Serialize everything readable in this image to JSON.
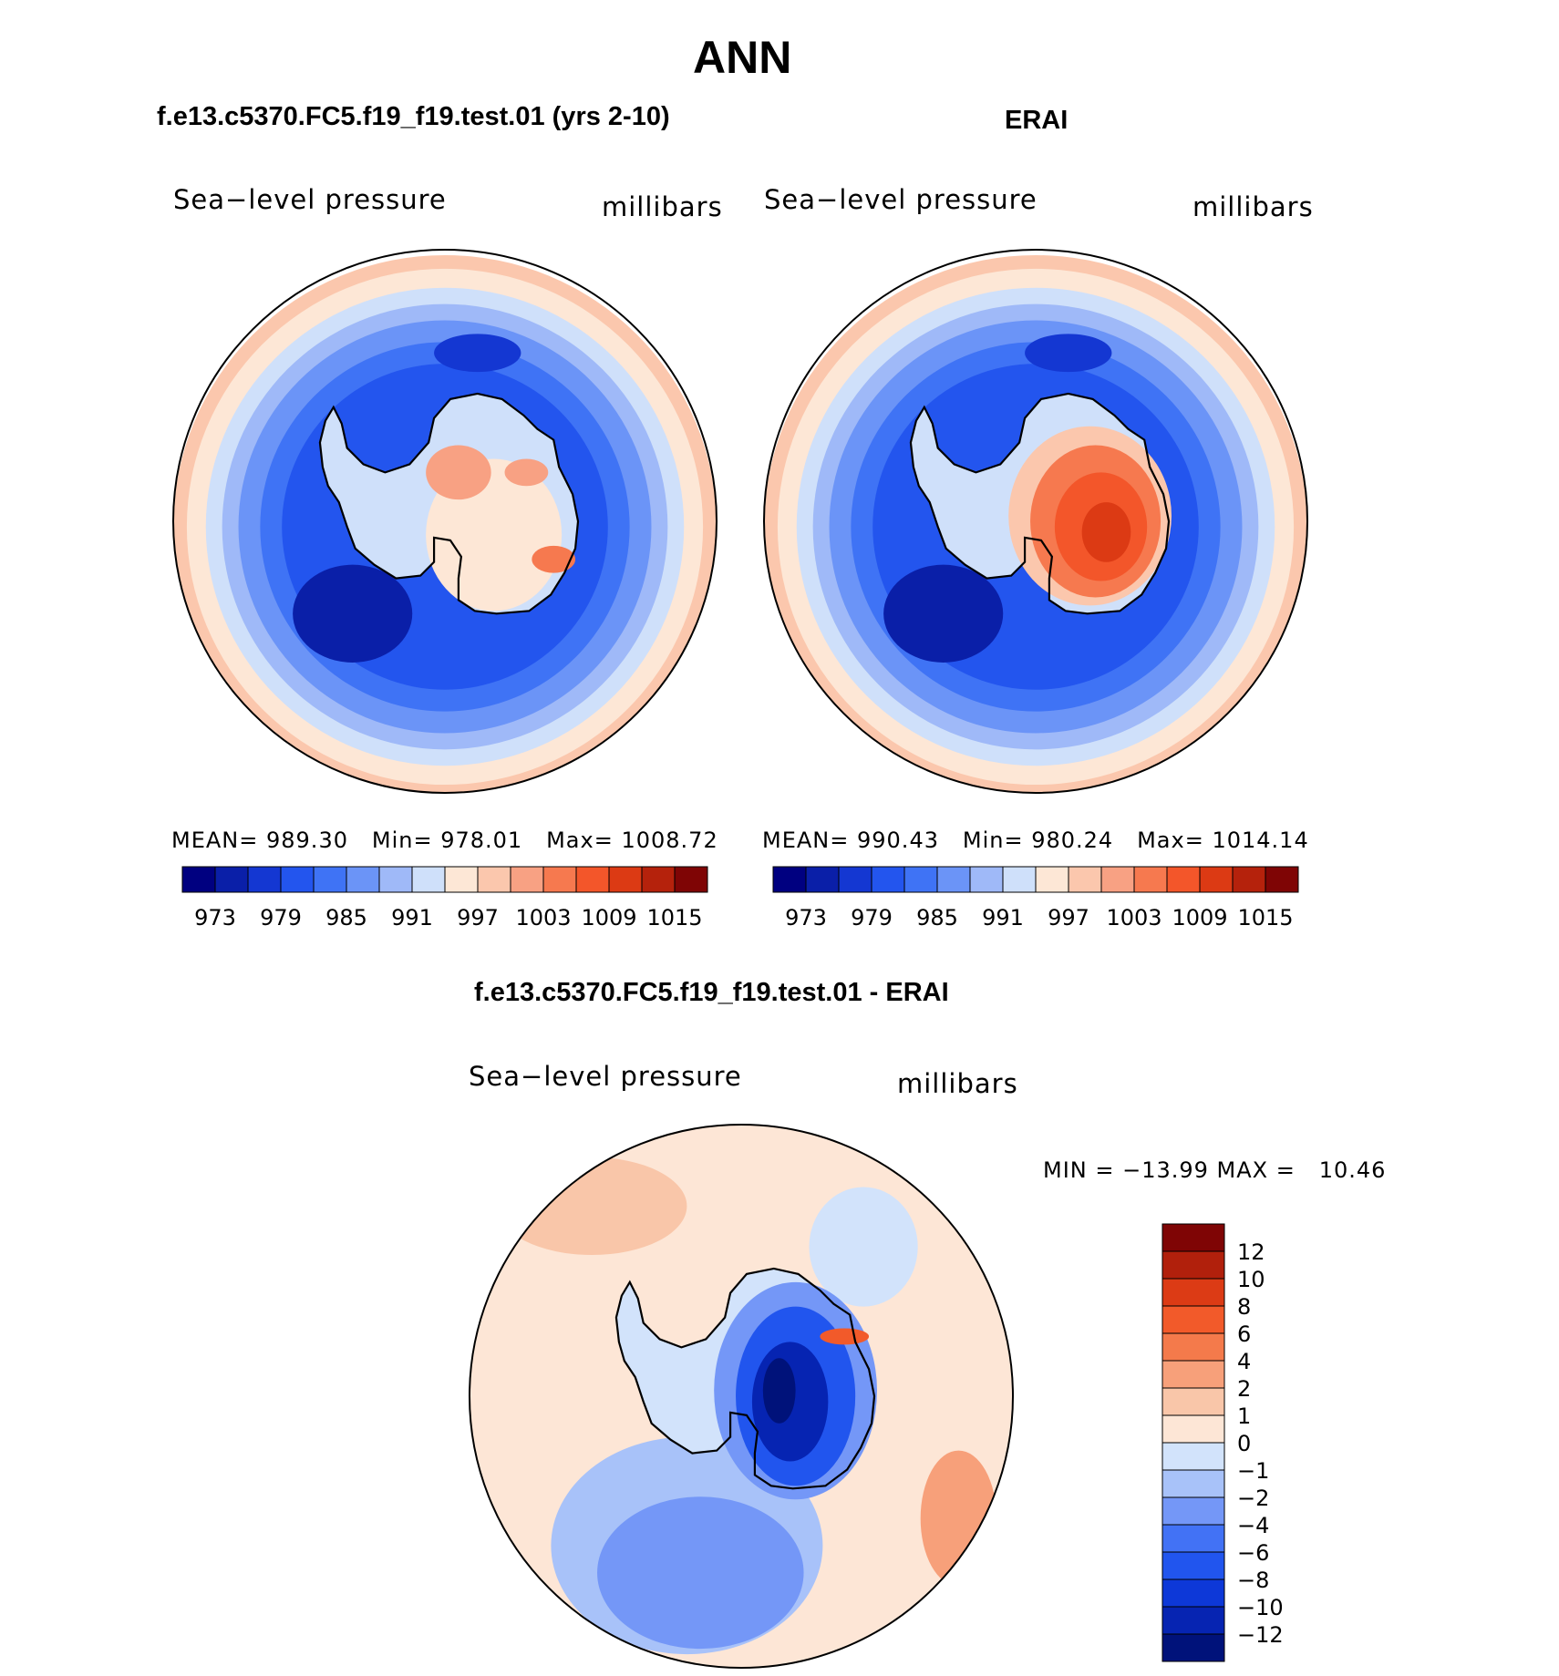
{
  "figure": {
    "title": "ANN",
    "panel_titles": {
      "model": "f.e13.c5370.FC5.f19_f19.test.01 (yrs 2-10)",
      "obs": "ERAI",
      "diff": "f.e13.c5370.FC5.f19_f19.test.01 - ERAI"
    },
    "variable": "Sea−level pressure",
    "units": "millibars"
  },
  "stats": {
    "model": {
      "mean_label": "MEAN=",
      "mean": "989.30",
      "min_label": "Min=",
      "min": "978.01",
      "max_label": "Max=",
      "max": "1008.72"
    },
    "obs": {
      "mean_label": "MEAN=",
      "mean": "990.43",
      "min_label": "Min=",
      "min": "980.24",
      "max_label": "Max=",
      "max": "1014.14"
    },
    "diff": {
      "text": "MIN = −13.99 MAX =   10.46"
    }
  },
  "colors": {
    "abs_scale": [
      "#000080",
      "#0a1fa8",
      "#1437d2",
      "#2355ee",
      "#3f73f5",
      "#6b94f7",
      "#9fb9f8",
      "#cfe0fa",
      "#fde7d6",
      "#fbc7ad",
      "#f8a183",
      "#f6794f",
      "#f3562a",
      "#dc3a14",
      "#b5220c",
      "#7f0505"
    ],
    "diff_scale": [
      "#00127a",
      "#0624b2",
      "#0d38d8",
      "#2155ee",
      "#4272f5",
      "#7497f7",
      "#a8c2f9",
      "#d2e3fb",
      "#fde6d6",
      "#f9c6a9",
      "#f7a07a",
      "#f47a4b",
      "#f25a2a",
      "#dc3b15",
      "#b1200c",
      "#7f0505"
    ]
  },
  "chart_data": [
    {
      "type": "heatmap",
      "name": "model",
      "title": "f.e13.c5370.FC5.f19_f19.test.01 (yrs 2-10)",
      "subtitle": "Sea−level pressure",
      "units": "millibars",
      "projection": "south polar stereographic",
      "mean": 989.3,
      "min": 978.01,
      "max": 1008.72,
      "colorbar_levels": [
        973,
        976,
        979,
        982,
        985,
        988,
        991,
        994,
        997,
        1000,
        1003,
        1006,
        1009,
        1012,
        1015
      ],
      "colorbar_tick_labels": [
        "973",
        "979",
        "985",
        "991",
        "997",
        "1003",
        "1009",
        "1015"
      ]
    },
    {
      "type": "heatmap",
      "name": "obs",
      "title": "ERAI",
      "subtitle": "Sea−level pressure",
      "units": "millibars",
      "projection": "south polar stereographic",
      "mean": 990.43,
      "min": 980.24,
      "max": 1014.14,
      "colorbar_levels": [
        973,
        976,
        979,
        982,
        985,
        988,
        991,
        994,
        997,
        1000,
        1003,
        1006,
        1009,
        1012,
        1015
      ],
      "colorbar_tick_labels": [
        "973",
        "979",
        "985",
        "991",
        "997",
        "1003",
        "1009",
        "1015"
      ]
    },
    {
      "type": "heatmap",
      "name": "difference",
      "title": "f.e13.c5370.FC5.f19_f19.test.01 - ERAI",
      "subtitle": "Sea−level pressure",
      "units": "millibars",
      "projection": "south polar stereographic",
      "min": -13.99,
      "max": 10.46,
      "colorbar_levels": [
        12,
        10,
        8,
        6,
        4,
        2,
        1,
        0,
        -1,
        -2,
        -4,
        -6,
        -8,
        -10,
        -12
      ],
      "colorbar_tick_labels": [
        "12",
        "10",
        "8",
        "6",
        "4",
        "2",
        "1",
        "0",
        "−1",
        "−2",
        "−4",
        "−6",
        "−8",
        "−10",
        "−12"
      ]
    }
  ]
}
